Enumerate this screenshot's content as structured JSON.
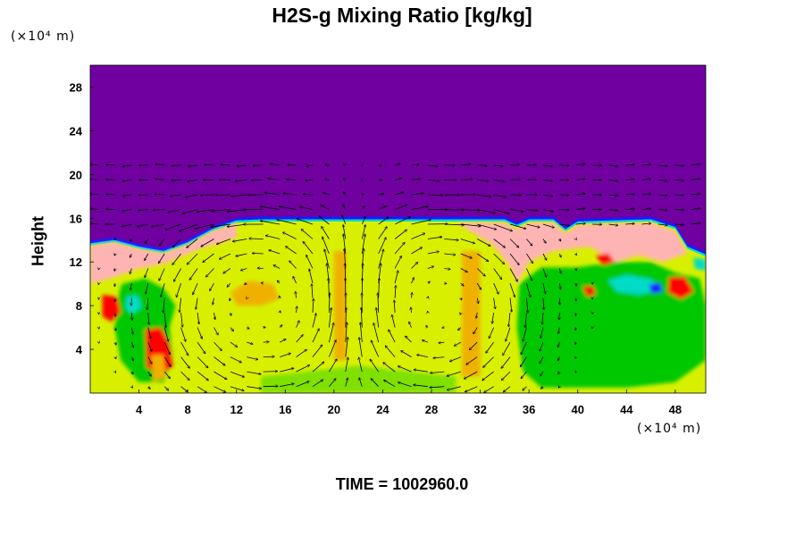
{
  "chart_data": {
    "type": "heatmap",
    "title": "H2S-g Mixing Ratio [kg/kg]",
    "xlabel": "",
    "ylabel": "Height",
    "x_unit_label": "(×10⁴ m)",
    "y_unit_label": "(×10⁴ m)",
    "footer": "TIME = 1002960.0",
    "xlim": [
      0,
      50.5
    ],
    "ylim": [
      0,
      30
    ],
    "x_ticks": [
      4,
      8,
      12,
      16,
      20,
      24,
      28,
      32,
      36,
      40,
      44,
      48
    ],
    "y_ticks": [
      4,
      8,
      12,
      16,
      20,
      24,
      28
    ],
    "grid": false,
    "legend": "none",
    "background_color": "#7000a0",
    "colormap": [
      "#7000a0",
      "#1a1aff",
      "#00b0ff",
      "#00dcc8",
      "#00c800",
      "#80e000",
      "#d8f000",
      "#f0f000",
      "#f0b000",
      "#ff5a00",
      "#ff0000",
      "#ffb4b4"
    ],
    "field_top_profile": [
      [
        0,
        13.5
      ],
      [
        2,
        13.8
      ],
      [
        4,
        13.2
      ],
      [
        6,
        12.8
      ],
      [
        8,
        13.6
      ],
      [
        10,
        14.8
      ],
      [
        12,
        15.6
      ],
      [
        14,
        15.7
      ],
      [
        20,
        15.7
      ],
      [
        26,
        15.7
      ],
      [
        30,
        15.7
      ],
      [
        34,
        15.7
      ],
      [
        35,
        15.2
      ],
      [
        36,
        15.7
      ],
      [
        38,
        15.7
      ],
      [
        39,
        14.8
      ],
      [
        40,
        15.5
      ],
      [
        46,
        15.7
      ],
      [
        48,
        15.0
      ],
      [
        49,
        13.2
      ],
      [
        50.5,
        12.5
      ]
    ],
    "regions": [
      {
        "label": "pink cap left",
        "value": 11,
        "points": [
          [
            0,
            13.5
          ],
          [
            2,
            13.8
          ],
          [
            4,
            13.2
          ],
          [
            6,
            12.8
          ],
          [
            8,
            13.6
          ],
          [
            10,
            14.8
          ],
          [
            12,
            15.6
          ],
          [
            12,
            14.2
          ],
          [
            9,
            13.2
          ],
          [
            6,
            11.8
          ],
          [
            4,
            11.4
          ],
          [
            2,
            10.6
          ],
          [
            0,
            10.0
          ]
        ]
      },
      {
        "label": "pink cap right",
        "value": 11,
        "points": [
          [
            30,
            15.6
          ],
          [
            34,
            15.6
          ],
          [
            35,
            15.0
          ],
          [
            36,
            15.6
          ],
          [
            38,
            15.6
          ],
          [
            39,
            14.6
          ],
          [
            40,
            15.4
          ],
          [
            46,
            15.6
          ],
          [
            48,
            14.8
          ],
          [
            49,
            12.8
          ],
          [
            47,
            12.0
          ],
          [
            45,
            12.6
          ],
          [
            43,
            12.0
          ],
          [
            41,
            13.4
          ],
          [
            38,
            13.0
          ],
          [
            36,
            12.0
          ],
          [
            35,
            10.0
          ],
          [
            34.5,
            11.5
          ],
          [
            33,
            13.6
          ]
        ]
      },
      {
        "label": "green column left",
        "value": 4,
        "points": [
          [
            2.6,
            10.0
          ],
          [
            4.5,
            10.5
          ],
          [
            6.0,
            9.6
          ],
          [
            7.0,
            8.0
          ],
          [
            6.5,
            6.0
          ],
          [
            6.8,
            3.0
          ],
          [
            6.0,
            1.0
          ],
          [
            4.0,
            1.0
          ],
          [
            2.5,
            3.0
          ],
          [
            2.0,
            6.0
          ],
          [
            2.2,
            8.5
          ]
        ]
      },
      {
        "label": "green column right",
        "value": 4,
        "points": [
          [
            35.2,
            10.0
          ],
          [
            37,
            11.5
          ],
          [
            40,
            11.5
          ],
          [
            43,
            12.0
          ],
          [
            46,
            12.0
          ],
          [
            48,
            11.0
          ],
          [
            50,
            10.5
          ],
          [
            50.5,
            8.0
          ],
          [
            50.5,
            3.0
          ],
          [
            48,
            1.0
          ],
          [
            44,
            0.5
          ],
          [
            40,
            0.5
          ],
          [
            37,
            0.5
          ],
          [
            35.5,
            2.0
          ],
          [
            35.0,
            6.0
          ]
        ]
      },
      {
        "label": "orange patch centre-left",
        "value": 8,
        "points": [
          [
            11.5,
            9.2
          ],
          [
            13,
            10.3
          ],
          [
            15,
            10.0
          ],
          [
            15.5,
            8.6
          ],
          [
            14,
            8.0
          ],
          [
            12.0,
            8.0
          ]
        ]
      },
      {
        "label": "red plume left",
        "value": 10,
        "points": [
          [
            4.5,
            5.8
          ],
          [
            5.8,
            6.0
          ],
          [
            6.5,
            4.5
          ],
          [
            6.8,
            2.5
          ],
          [
            5.8,
            1.6
          ],
          [
            4.6,
            2.4
          ],
          [
            4.6,
            4.0
          ]
        ]
      },
      {
        "label": "red patch upper left",
        "value": 10,
        "points": [
          [
            1.0,
            9.0
          ],
          [
            2.2,
            8.8
          ],
          [
            2.5,
            7.4
          ],
          [
            1.8,
            6.5
          ],
          [
            1.0,
            7.0
          ]
        ]
      },
      {
        "label": "orange column",
        "value": 8,
        "points": [
          [
            5.0,
            3.5
          ],
          [
            6.0,
            3.5
          ],
          [
            6.2,
            1.5
          ],
          [
            5.2,
            1.0
          ]
        ]
      },
      {
        "label": "cyan spot left",
        "value": 3,
        "points": [
          [
            3.0,
            8.8
          ],
          [
            3.9,
            8.9
          ],
          [
            4.2,
            7.8
          ],
          [
            3.4,
            7.3
          ],
          [
            2.9,
            7.8
          ]
        ]
      },
      {
        "label": "cyan blob right",
        "value": 3,
        "points": [
          [
            42.5,
            10.3
          ],
          [
            44,
            10.8
          ],
          [
            46,
            10.4
          ],
          [
            47,
            9.5
          ],
          [
            45,
            9.0
          ],
          [
            43.2,
            9.3
          ]
        ]
      },
      {
        "label": "blue spot right",
        "value": 1,
        "points": [
          [
            45.8,
            9.9
          ],
          [
            46.7,
            10.1
          ],
          [
            47,
            9.3
          ],
          [
            46.1,
            9.1
          ]
        ]
      },
      {
        "label": "red blob right",
        "value": 10,
        "points": [
          [
            47.5,
            10.6
          ],
          [
            48.8,
            10.6
          ],
          [
            49.5,
            9.3
          ],
          [
            48.5,
            8.6
          ],
          [
            47.4,
            9.2
          ]
        ]
      },
      {
        "label": "red spot right",
        "value": 10,
        "points": [
          [
            40.4,
            9.7
          ],
          [
            41.2,
            9.8
          ],
          [
            41.5,
            9.1
          ],
          [
            40.8,
            8.8
          ]
        ]
      },
      {
        "label": "red spot top right",
        "value": 10,
        "points": [
          [
            41.5,
            12.6
          ],
          [
            42.5,
            12.8
          ],
          [
            43.0,
            12.0
          ],
          [
            42.0,
            11.7
          ]
        ]
      },
      {
        "label": "cyan edge right",
        "value": 3,
        "points": [
          [
            49.5,
            12.4
          ],
          [
            50.5,
            12.2
          ],
          [
            50.5,
            11.2
          ],
          [
            49.6,
            11.4
          ]
        ]
      },
      {
        "label": "orange strip centre",
        "value": 8,
        "points": [
          [
            20,
            3
          ],
          [
            21,
            3
          ],
          [
            21,
            13
          ],
          [
            20,
            13
          ]
        ]
      },
      {
        "label": "orange strip centre-right",
        "value": 8,
        "points": [
          [
            30.5,
            1.5
          ],
          [
            32,
            1.5
          ],
          [
            32,
            13
          ],
          [
            30.5,
            13
          ]
        ]
      },
      {
        "label": "green base centre",
        "value": 5,
        "points": [
          [
            14,
            0
          ],
          [
            30,
            0
          ],
          [
            30,
            1.5
          ],
          [
            22,
            2.5
          ],
          [
            14,
            1.5
          ]
        ]
      }
    ],
    "vector_field": {
      "x_spacing": 1.35,
      "y_spacing": 1.35,
      "y_max": 22,
      "cells": [
        {
          "center": [
            14,
            8
          ],
          "rx": 7,
          "ry": 6.5,
          "direction": "counterclockwise",
          "strength": 1.0
        },
        {
          "center": [
            28.5,
            8
          ],
          "rx": 6.5,
          "ry": 6.5,
          "direction": "clockwise",
          "strength": 1.0
        }
      ],
      "upper_flow": "outward from x≈22 above the cloud top"
    }
  }
}
